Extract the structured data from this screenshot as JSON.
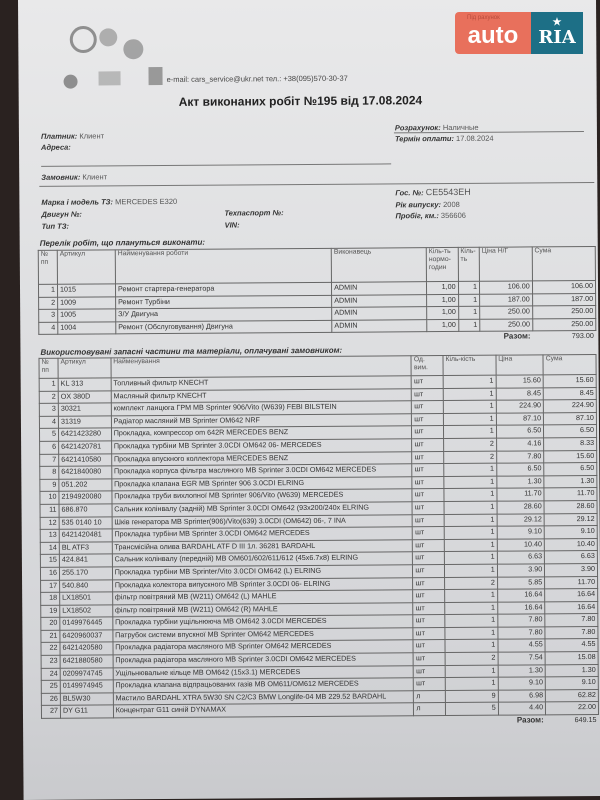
{
  "watermark": {
    "brand_left": "auto",
    "brand_right": "RIA",
    "tagline": "Під рахунок",
    "star": "★",
    "colors": {
      "left": "#e8705c",
      "right": "#1d6f86"
    }
  },
  "header": {
    "contact": "e-mail: cars_service@ukr.net  тел.: +38(095)570-30-37",
    "title": "Акт виконаних робіт №195  від   17.08.2024"
  },
  "info": {
    "payer_label": "Платник:",
    "payer": "Клиент",
    "address_label": "Адреса:",
    "address": "",
    "payment_label": "Розрахунок:",
    "payment": "Наличные",
    "term_label": "Термін оплати:",
    "term": "17.08.2024",
    "customer_label": "Замовник:",
    "customer": "Клиент",
    "model_label": "Марка і модель ТЗ:",
    "model": "MERCEDES E320",
    "engine_label": "Двигун №:",
    "engine": "",
    "type_label": "Тип ТЗ:",
    "type": "",
    "passport_label": "Техпаспорт №:",
    "passport": "",
    "vin_label": "VIN:",
    "vin": "",
    "plate_label": "Гос. №:",
    "plate": "CE5543EH",
    "year_label": "Рік випуску:",
    "year": "2008",
    "mileage_label": "Пробіг, км.:",
    "mileage": "356606"
  },
  "works": {
    "title": "Перелік робіт, що плануться виконати:",
    "headers": [
      "№ пп",
      "Артикул",
      "Найменування роботи",
      "Виконавець",
      "Кіль-ть нормо-годин",
      "Кіль-ть",
      "Ціна Н/Г",
      "Сума"
    ],
    "rows": [
      [
        "1",
        "1015",
        "Ремонт стартера-генератора",
        "ADMIN",
        "1,00",
        "1",
        "106.00",
        "106.00"
      ],
      [
        "2",
        "1009",
        "Ремонт Турбіни",
        "ADMIN",
        "1,00",
        "1",
        "187.00",
        "187.00"
      ],
      [
        "3",
        "1005",
        "З/У Двигуна",
        "ADMIN",
        "1,00",
        "1",
        "250.00",
        "250.00"
      ],
      [
        "4",
        "1004",
        "Ремонт (Обслуговування) Двигуна",
        "ADMIN",
        "1,00",
        "1",
        "250.00",
        "250.00"
      ]
    ],
    "total_label": "Разом:",
    "total": "793.00"
  },
  "parts": {
    "title": "Використовувані запасні частини та матеріали, оплачувані замовником:",
    "headers": [
      "№ пп",
      "Артикул",
      "Найменування",
      "Од. вим.",
      "Кіль-кість",
      "Ціна",
      "Сума"
    ],
    "rows": [
      [
        "1",
        "KL 313",
        "Топливный фильтр KNECHT",
        "шт",
        "1",
        "15.60",
        "15.60"
      ],
      [
        "2",
        "OX 380D",
        "Масляный фильтр KNECHT",
        "шт",
        "1",
        "8.45",
        "8.45"
      ],
      [
        "3",
        "30321",
        "комплект ланцюга ГРМ MB Sprinter 906/Vito (W639) FEBI BILSTEIN",
        "шт",
        "1",
        "224.90",
        "224.90"
      ],
      [
        "4",
        "31319",
        "Радіатор масляний MB Sprinter OM642 NRF",
        "шт",
        "1",
        "87.10",
        "87.10"
      ],
      [
        "5",
        "6421423280",
        "Прокладка, компрессор om 642R MERCEDES BENZ",
        "шт",
        "1",
        "6.50",
        "6.50"
      ],
      [
        "6",
        "6421420781",
        "Прокладка турбіни MB Sprinter 3.0CDI OM642 06- MERCEDES",
        "шт",
        "2",
        "4.16",
        "8.33"
      ],
      [
        "7",
        "6421410580",
        "Прокладка впускного коллектора MERCEDES BENZ",
        "шт",
        "2",
        "7.80",
        "15.60"
      ],
      [
        "8",
        "6421840080",
        "Прокладка корпуса фільтра масляного MB Sprinter 3.0CDI OM642 MERCEDES",
        "шт",
        "1",
        "6.50",
        "6.50"
      ],
      [
        "9",
        "051.202",
        "Прокладка клапана EGR MB Sprinter 906 3.0CDI ELRING",
        "шт",
        "1",
        "1.30",
        "1.30"
      ],
      [
        "10",
        "2194920080",
        "Прокладка труби вихлопної MB Sprinter 906/Vito (W639) MERCEDES",
        "шт",
        "1",
        "11.70",
        "11.70"
      ],
      [
        "11",
        "686.870",
        "Сальник колінвалу (задній) MB Sprinter 3.0CDI OM642 (93x200/240x ELRING",
        "шт",
        "1",
        "28.60",
        "28.60"
      ],
      [
        "12",
        "535 0140 10",
        "Шків генератора MB Sprinter(906)/Vito(639) 3.0CDI (OM642) 06-, 7 INA",
        "шт",
        "1",
        "29.12",
        "29.12"
      ],
      [
        "13",
        "6421420481",
        "Прокладка турбіни MB Sprinter 3.0CDI OM642 MERCEDES",
        "шт",
        "1",
        "9.10",
        "9.10"
      ],
      [
        "14",
        "BL ATF3",
        "Трансмісійна олива BARDAHL ATF D III 1л. 36281 BARDAHL",
        "шт",
        "1",
        "10.40",
        "10.40"
      ],
      [
        "15",
        "424.841",
        "Сальник колінвалу (передній) MB OM601/602/611/612 (45x6.7x8) ELRING",
        "шт",
        "1",
        "6.63",
        "6.63"
      ],
      [
        "16",
        "255.170",
        "Прокладка турбіни MB Sprinter/Vito 3.0CDI OM642 (L) ELRING",
        "шт",
        "1",
        "3.90",
        "3.90"
      ],
      [
        "17",
        "540.840",
        "Прокладка колектора випускного MB Sprinter 3.0CDI 06- ELRING",
        "шт",
        "2",
        "5.85",
        "11.70"
      ],
      [
        "18",
        "LX18501",
        "фільтр повітряний MB (W211) OM642 (L) MAHLE",
        "шт",
        "1",
        "16.64",
        "16.64"
      ],
      [
        "19",
        "LX18502",
        "фільтр повітряний MB (W211) OM642 (R) MAHLE",
        "шт",
        "1",
        "16.64",
        "16.64"
      ],
      [
        "20",
        "0149976445",
        "Прокладка турбіни ущільнююча MB OM642 3.0CDI MERCEDES",
        "шт",
        "1",
        "7.80",
        "7.80"
      ],
      [
        "21",
        "6420960037",
        "Патрубок системи впускної MB Sprinter OM642 MERCEDES",
        "шт",
        "1",
        "7.80",
        "7.80"
      ],
      [
        "22",
        "6421420580",
        "Прокладка радіатора масляного MB Sprinter OM642 MERCEDES",
        "шт",
        "1",
        "4.55",
        "4.55"
      ],
      [
        "23",
        "6421880580",
        "Прокладка радіатора масляного MB Sprinter 3.0CDI OM642 MERCEDES",
        "шт",
        "2",
        "7.54",
        "15.08"
      ],
      [
        "24",
        "0209974745",
        "Ущільнювальне кільце MB OM642 (15x3.1) MERCEDES",
        "шт",
        "1",
        "1.30",
        "1.30"
      ],
      [
        "25",
        "0149974945",
        "Прокладка клапана відпрацьованих газів MB OM611/OM612 MERCEDES",
        "шт",
        "1",
        "9.10",
        "9.10"
      ],
      [
        "26",
        "BL5W30",
        "Мастило BARDAHL XTRA 5W30 SN C2/C3 BMW Longlife-04  MB 229.52 BARDAHL",
        "л",
        "9",
        "6.98",
        "62.82"
      ],
      [
        "27",
        "DY G11",
        "Концентрат G11 синій DYNAMAX",
        "л",
        "5",
        "4.40",
        "22.00"
      ]
    ],
    "total_label": "Разом:",
    "total": "649.15"
  }
}
